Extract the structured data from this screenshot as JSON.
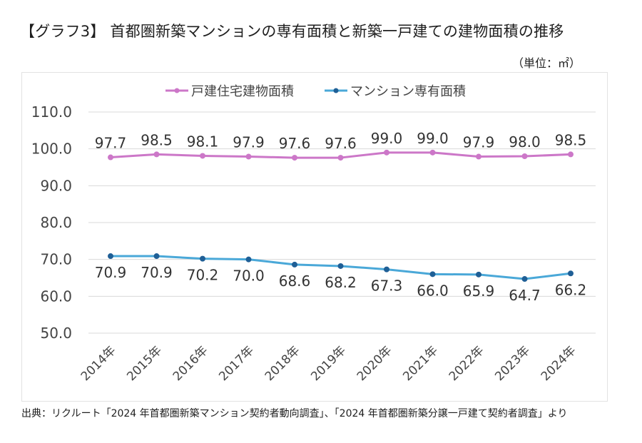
{
  "title": "【グラフ3】 首都圏新築マンションの専有面積と新築一戸建ての建物面積の推移",
  "unit": "（単位：㎡）",
  "source": "出典：リクルート「2024 年首都圏新築マンション契約者動向調査」、「2024 年首都圏新築分譲一戸建て契約者調査」より",
  "chart_data": {
    "type": "line",
    "title": "【グラフ3】 首都圏新築マンションの専有面積と新築一戸建ての建物面積の推移",
    "xlabel": "",
    "ylabel": "（単位：㎡）",
    "categories": [
      "2014年",
      "2015年",
      "2016年",
      "2017年",
      "2018年",
      "2019年",
      "2020年",
      "2021年",
      "2022年",
      "2023年",
      "2024年"
    ],
    "ylim": [
      50,
      110
    ],
    "yticks": [
      "110.0",
      "100.0",
      "90.0",
      "80.0",
      "70.0",
      "60.0",
      "50.0"
    ],
    "ytick_values": [
      110,
      100,
      90,
      80,
      70,
      60,
      50
    ],
    "grid": true,
    "legend_position": "top",
    "series": [
      {
        "name": "戸建住宅建物面積",
        "color": "#cc77c8",
        "label_position": "above",
        "values": [
          97.7,
          98.5,
          98.1,
          97.9,
          97.6,
          97.6,
          99.0,
          99.0,
          97.9,
          98.0,
          98.5
        ],
        "labels": [
          "97.7",
          "98.5",
          "98.1",
          "97.9",
          "97.6",
          "97.6",
          "99.0",
          "99.0",
          "97.9",
          "98.0",
          "98.5"
        ]
      },
      {
        "name": "マンション専有面積",
        "color": "#4aa8d8",
        "marker_color": "#1f5f96",
        "label_position": "below",
        "values": [
          70.9,
          70.9,
          70.2,
          70.0,
          68.6,
          68.2,
          67.3,
          66.0,
          65.9,
          64.7,
          66.2
        ],
        "labels": [
          "70.9",
          "70.9",
          "70.2",
          "70.0",
          "68.6",
          "68.2",
          "67.3",
          "66.0",
          "65.9",
          "64.7",
          "66.2"
        ]
      }
    ]
  }
}
